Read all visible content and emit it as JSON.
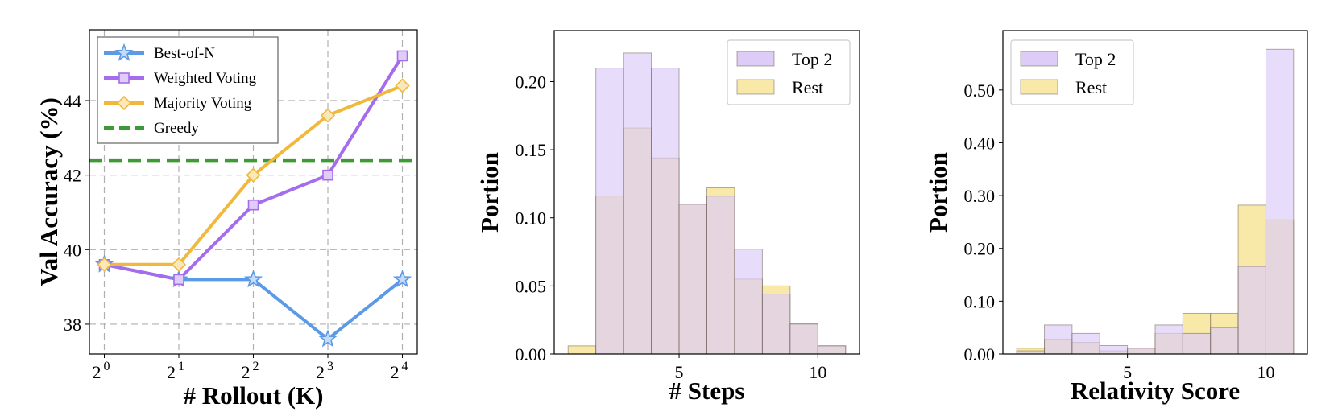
{
  "chart_data": [
    {
      "type": "line",
      "title": "",
      "xlabel": "# Rollout (K)",
      "ylabel": "Val Accuracy (%)",
      "x": [
        0,
        1,
        2,
        3,
        4
      ],
      "x_tick_labels": [
        {
          "base": "2",
          "exp": "0"
        },
        {
          "base": "2",
          "exp": "1"
        },
        {
          "base": "2",
          "exp": "2"
        },
        {
          "base": "2",
          "exp": "3"
        },
        {
          "base": "2",
          "exp": "4"
        }
      ],
      "y_ticks": [
        38,
        40,
        42,
        44
      ],
      "ylim": [
        37.2,
        45.9
      ],
      "grid": true,
      "legend_position": "top-left",
      "series": [
        {
          "name": "Best-of-N",
          "values": [
            39.6,
            39.2,
            39.2,
            37.6,
            39.2
          ],
          "color": "#5b9ae6",
          "marker": "star"
        },
        {
          "name": "Weighted Voting",
          "values": [
            39.6,
            39.2,
            41.2,
            42.0,
            45.2
          ],
          "color": "#a56cec",
          "marker": "square"
        },
        {
          "name": "Majority Voting",
          "values": [
            39.6,
            39.6,
            42.0,
            43.6,
            44.4
          ],
          "color": "#f0b93b",
          "marker": "diamond"
        }
      ],
      "reference_lines": [
        {
          "name": "Greedy",
          "value": 42.4,
          "color": "#3e9a35",
          "style": "dashed"
        }
      ]
    },
    {
      "type": "bar",
      "title": "",
      "xlabel": "# Steps",
      "ylabel": "Portion",
      "bin_edges": [
        1.0,
        2.0,
        3.0,
        4.0,
        5.0,
        6.0,
        7.0,
        8.0,
        9.0,
        10.0,
        11.0
      ],
      "x_ticks": [
        5,
        10
      ],
      "y_ticks": [
        "0.00",
        "0.05",
        "0.10",
        "0.15",
        "0.20"
      ],
      "y_tick_values": [
        0.0,
        0.05,
        0.1,
        0.15,
        0.2
      ],
      "ylim": [
        0,
        0.2375
      ],
      "xlim": [
        0.5,
        11.5
      ],
      "legend_position": "top-right",
      "series": [
        {
          "name": "Top 2",
          "values": [
            0.0,
            0.21,
            0.221,
            0.21,
            0.11,
            0.116,
            0.077,
            0.044,
            0.022,
            0.006
          ],
          "color": "#dcccf7"
        },
        {
          "name": "Rest",
          "values": [
            0.006,
            0.116,
            0.166,
            0.144,
            0.11,
            0.122,
            0.055,
            0.05,
            0.022,
            0.006
          ],
          "color": "#f9e9a9"
        }
      ]
    },
    {
      "type": "bar",
      "title": "",
      "xlabel": "Relativity Score",
      "ylabel": "Portion",
      "bin_edges": [
        1.0,
        2.0,
        3.0,
        4.0,
        5.0,
        6.0,
        7.0,
        8.0,
        9.0,
        10.0,
        11.0
      ],
      "x_ticks": [
        5,
        10
      ],
      "y_ticks": [
        "0.00",
        "0.10",
        "0.20",
        "0.30",
        "0.40",
        "0.50"
      ],
      "y_tick_values": [
        0.0,
        0.1,
        0.2,
        0.3,
        0.4,
        0.5
      ],
      "ylim": [
        0,
        0.6125
      ],
      "xlim": [
        0.5,
        11.5
      ],
      "legend_position": "top-left",
      "series": [
        {
          "name": "Top 2",
          "values": [
            0.006,
            0.055,
            0.039,
            0.016,
            0.011,
            0.055,
            0.039,
            0.05,
            0.166,
            0.577
          ],
          "color": "#dcccf7"
        },
        {
          "name": "Rest",
          "values": [
            0.011,
            0.028,
            0.022,
            0.006,
            0.011,
            0.039,
            0.077,
            0.077,
            0.282,
            0.254
          ],
          "color": "#f9e9a9"
        }
      ]
    }
  ]
}
